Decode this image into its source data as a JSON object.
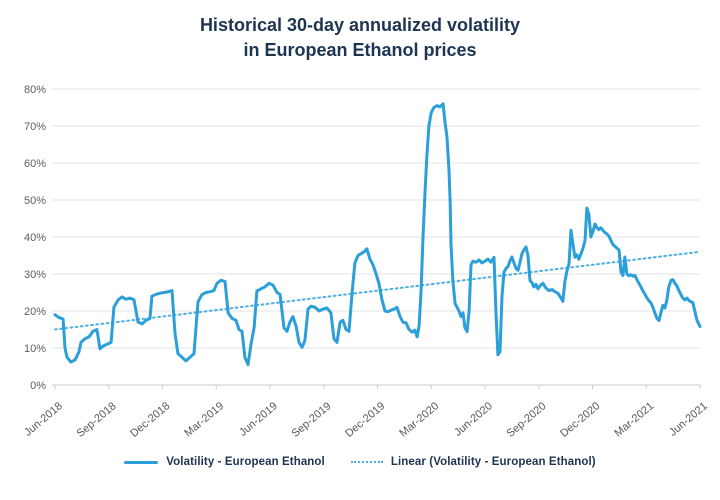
{
  "title": {
    "line1": "Historical 30-day annualized volatility",
    "line2": "in European Ethanol prices"
  },
  "colors": {
    "line": "#2b9fd9",
    "trend": "#4bafe1",
    "title_text": "#1d3452",
    "axis_text": "#585d62",
    "gridline": "#e1e3e5",
    "axis_line": "#c9ccce",
    "background": "#ffffff"
  },
  "chart_data": {
    "type": "line",
    "title": "Historical 30-day annualized volatility in European Ethanol prices",
    "xlabel": "",
    "ylabel": "",
    "ylim": [
      0,
      80
    ],
    "x_range_months": 36,
    "grid": "horizontal",
    "legend_position": "bottom",
    "y_ticks": [
      "0%",
      "10%",
      "20%",
      "30%",
      "40%",
      "50%",
      "60%",
      "70%",
      "80%"
    ],
    "x_ticks": [
      "Jun-2018",
      "Sep-2018",
      "Dec-2018",
      "Mar-2019",
      "Jun-2019",
      "Sep-2019",
      "Dec-2019",
      "Mar-2020",
      "Jun-2020",
      "Sep-2020",
      "Dec-2020",
      "Mar-2021",
      "Jun-2021"
    ],
    "series": [
      {
        "name": "Volatility - European Ethanol",
        "style": "solid",
        "unit": "%",
        "points": [
          [
            0,
            19
          ],
          [
            0.2,
            18.3
          ],
          [
            0.45,
            17.8
          ],
          [
            0.56,
            10
          ],
          [
            0.67,
            7.5
          ],
          [
            0.89,
            6.2
          ],
          [
            1.12,
            6.8
          ],
          [
            1.34,
            9
          ],
          [
            1.45,
            11.5
          ],
          [
            1.67,
            12.5
          ],
          [
            1.9,
            13
          ],
          [
            2.12,
            14.5
          ],
          [
            2.34,
            15
          ],
          [
            2.51,
            9.8
          ],
          [
            2.68,
            10.5
          ],
          [
            2.9,
            11
          ],
          [
            3.13,
            11.5
          ],
          [
            3.29,
            21
          ],
          [
            3.52,
            23
          ],
          [
            3.74,
            23.8
          ],
          [
            3.96,
            23.2
          ],
          [
            4.19,
            23.5
          ],
          [
            4.41,
            23
          ],
          [
            4.63,
            17
          ],
          [
            4.86,
            16.5
          ],
          [
            5.08,
            17.5
          ],
          [
            5.3,
            18
          ],
          [
            5.41,
            24
          ],
          [
            5.64,
            24.5
          ],
          [
            5.86,
            24.8
          ],
          [
            6.08,
            25
          ],
          [
            6.31,
            25.2
          ],
          [
            6.53,
            25.5
          ],
          [
            6.7,
            14
          ],
          [
            6.86,
            8.5
          ],
          [
            7.09,
            7.5
          ],
          [
            7.31,
            6.5
          ],
          [
            7.53,
            7.5
          ],
          [
            7.76,
            8.5
          ],
          [
            7.98,
            22.5
          ],
          [
            8.2,
            24.4
          ],
          [
            8.43,
            25
          ],
          [
            8.65,
            25.2
          ],
          [
            8.87,
            25.5
          ],
          [
            9.04,
            27.5
          ],
          [
            9.26,
            28.3
          ],
          [
            9.49,
            28
          ],
          [
            9.66,
            19.5
          ],
          [
            9.88,
            18
          ],
          [
            10.1,
            17.5
          ],
          [
            10.27,
            15
          ],
          [
            10.44,
            14.5
          ],
          [
            10.6,
            7.5
          ],
          [
            10.77,
            5.5
          ],
          [
            10.94,
            11
          ],
          [
            11.11,
            15.5
          ],
          [
            11.27,
            25.4
          ],
          [
            11.5,
            26
          ],
          [
            11.72,
            26.5
          ],
          [
            11.94,
            27.5
          ],
          [
            12.17,
            27
          ],
          [
            12.39,
            25
          ],
          [
            12.56,
            24.5
          ],
          [
            12.78,
            15.5
          ],
          [
            12.95,
            14.5
          ],
          [
            13.11,
            17
          ],
          [
            13.28,
            18.5
          ],
          [
            13.45,
            16
          ],
          [
            13.62,
            11.5
          ],
          [
            13.79,
            10.2
          ],
          [
            13.95,
            12
          ],
          [
            14.12,
            20.5
          ],
          [
            14.29,
            21.3
          ],
          [
            14.51,
            21
          ],
          [
            14.74,
            20
          ],
          [
            14.96,
            20.5
          ],
          [
            15.18,
            20.8
          ],
          [
            15.4,
            19.5
          ],
          [
            15.57,
            12.5
          ],
          [
            15.74,
            11.5
          ],
          [
            15.91,
            17
          ],
          [
            16.07,
            17.5
          ],
          [
            16.24,
            15
          ],
          [
            16.41,
            14.5
          ],
          [
            16.58,
            25
          ],
          [
            16.74,
            33
          ],
          [
            16.91,
            35
          ],
          [
            17.08,
            35.5
          ],
          [
            17.25,
            36
          ],
          [
            17.41,
            36.8
          ],
          [
            17.58,
            34
          ],
          [
            17.75,
            32.5
          ],
          [
            17.92,
            30
          ],
          [
            18.08,
            27.5
          ],
          [
            18.25,
            23
          ],
          [
            18.42,
            20
          ],
          [
            18.59,
            19.8
          ],
          [
            18.75,
            20.2
          ],
          [
            18.92,
            20.5
          ],
          [
            19.09,
            21
          ],
          [
            19.26,
            18.5
          ],
          [
            19.42,
            17
          ],
          [
            19.59,
            16.8
          ],
          [
            19.76,
            15
          ],
          [
            19.93,
            14.3
          ],
          [
            20.09,
            14.8
          ],
          [
            20.21,
            13
          ],
          [
            20.32,
            16
          ],
          [
            20.43,
            25
          ],
          [
            20.54,
            40
          ],
          [
            20.65,
            52
          ],
          [
            20.76,
            62
          ],
          [
            20.87,
            70
          ],
          [
            20.99,
            73.5
          ],
          [
            21.15,
            75
          ],
          [
            21.32,
            75.5
          ],
          [
            21.49,
            75.2
          ],
          [
            21.66,
            76
          ],
          [
            21.77,
            71
          ],
          [
            21.88,
            67
          ],
          [
            21.99,
            58
          ],
          [
            22.05,
            50
          ],
          [
            22.1,
            38
          ],
          [
            22.21,
            28
          ],
          [
            22.33,
            22
          ],
          [
            22.44,
            21
          ],
          [
            22.55,
            20
          ],
          [
            22.66,
            18.5
          ],
          [
            22.77,
            19.5
          ],
          [
            22.88,
            15.5
          ],
          [
            23,
            14.4
          ],
          [
            23.11,
            20
          ],
          [
            23.22,
            32.5
          ],
          [
            23.33,
            33.5
          ],
          [
            23.5,
            33.2
          ],
          [
            23.67,
            33.8
          ],
          [
            23.83,
            33
          ],
          [
            24,
            33.5
          ],
          [
            24.17,
            34
          ],
          [
            24.33,
            33.2
          ],
          [
            24.5,
            34.5
          ],
          [
            24.61,
            20
          ],
          [
            24.72,
            8.2
          ],
          [
            24.84,
            9
          ],
          [
            24.95,
            24
          ],
          [
            25.06,
            30.5
          ],
          [
            25.17,
            31.5
          ],
          [
            25.28,
            32
          ],
          [
            25.39,
            33.5
          ],
          [
            25.5,
            34.6
          ],
          [
            25.62,
            33
          ],
          [
            25.73,
            31.5
          ],
          [
            25.84,
            31
          ],
          [
            25.95,
            33
          ],
          [
            26.06,
            35.5
          ],
          [
            26.17,
            36.5
          ],
          [
            26.29,
            37.3
          ],
          [
            26.4,
            35
          ],
          [
            26.51,
            28.2
          ],
          [
            26.62,
            27.7
          ],
          [
            26.73,
            26.5
          ],
          [
            26.84,
            27.2
          ],
          [
            26.96,
            26
          ],
          [
            27.07,
            26.8
          ],
          [
            27.24,
            27.5
          ],
          [
            27.4,
            26.2
          ],
          [
            27.57,
            25.5
          ],
          [
            27.74,
            25.8
          ],
          [
            27.91,
            25.2
          ],
          [
            28.07,
            24.8
          ],
          [
            28.24,
            23.5
          ],
          [
            28.35,
            22.6
          ],
          [
            28.46,
            28
          ],
          [
            28.58,
            31
          ],
          [
            28.69,
            32.7
          ],
          [
            28.8,
            41.8
          ],
          [
            28.91,
            38
          ],
          [
            29.02,
            34.5
          ],
          [
            29.13,
            35.2
          ],
          [
            29.24,
            34
          ],
          [
            29.36,
            35.5
          ],
          [
            29.47,
            37
          ],
          [
            29.58,
            39
          ],
          [
            29.69,
            47.8
          ],
          [
            29.8,
            46
          ],
          [
            29.91,
            40
          ],
          [
            30.03,
            41.5
          ],
          [
            30.14,
            43.5
          ],
          [
            30.25,
            42.5
          ],
          [
            30.36,
            42
          ],
          [
            30.47,
            42.5
          ],
          [
            30.58,
            41.8
          ],
          [
            30.7,
            41.2
          ],
          [
            30.81,
            40.8
          ],
          [
            30.92,
            40.2
          ],
          [
            31.03,
            39
          ],
          [
            31.14,
            38
          ],
          [
            31.25,
            37.5
          ],
          [
            31.36,
            37
          ],
          [
            31.48,
            36.5
          ],
          [
            31.59,
            30.5
          ],
          [
            31.7,
            29.6
          ],
          [
            31.81,
            34.6
          ],
          [
            31.92,
            30
          ],
          [
            32.03,
            29.5
          ],
          [
            32.15,
            29.8
          ],
          [
            32.26,
            29.4
          ],
          [
            32.37,
            29.6
          ],
          [
            32.48,
            28.5
          ],
          [
            32.59,
            27.5
          ],
          [
            32.7,
            26.5
          ],
          [
            32.81,
            25.5
          ],
          [
            32.93,
            24.5
          ],
          [
            33.04,
            23.5
          ],
          [
            33.15,
            22.8
          ],
          [
            33.26,
            22.2
          ],
          [
            33.37,
            21
          ],
          [
            33.48,
            19.5
          ],
          [
            33.6,
            18
          ],
          [
            33.71,
            17.4
          ],
          [
            33.82,
            19.5
          ],
          [
            33.93,
            21.5
          ],
          [
            34.04,
            20.8
          ],
          [
            34.15,
            23
          ],
          [
            34.26,
            26.5
          ],
          [
            34.38,
            28.3
          ],
          [
            34.49,
            28.5
          ],
          [
            34.6,
            27.5
          ],
          [
            34.71,
            26.8
          ],
          [
            34.82,
            25.5
          ],
          [
            34.93,
            24.5
          ],
          [
            35.04,
            23.5
          ],
          [
            35.16,
            23
          ],
          [
            35.27,
            23.5
          ],
          [
            35.38,
            22.8
          ],
          [
            35.49,
            22.5
          ],
          [
            35.6,
            22.3
          ],
          [
            35.71,
            20
          ],
          [
            35.83,
            17.5
          ],
          [
            36,
            15.8
          ]
        ]
      },
      {
        "name": "Linear (Volatility - European Ethanol)",
        "style": "dotted-trend",
        "unit": "%",
        "trend": {
          "start_value": 15,
          "end_value": 36
        }
      }
    ]
  }
}
